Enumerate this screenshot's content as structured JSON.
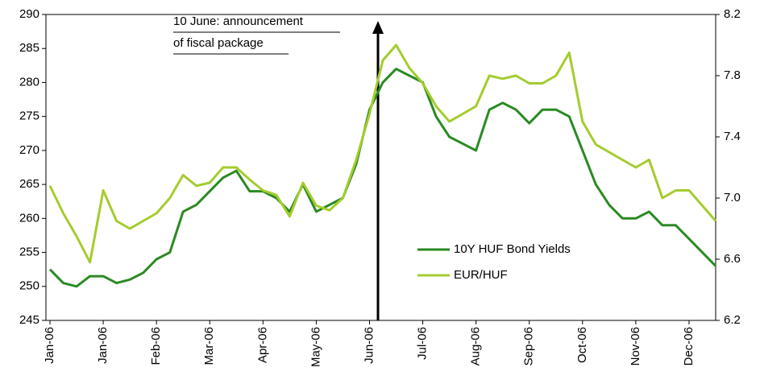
{
  "chart_data": {
    "type": "line",
    "annotations": [
      "10 June: announcement",
      "of fiscal package"
    ],
    "categories": [
      "Jan-06",
      null,
      null,
      null,
      "Jan-06",
      null,
      null,
      null,
      "Feb-06",
      null,
      null,
      null,
      "Mar-06",
      null,
      null,
      null,
      "Apr-06",
      null,
      null,
      null,
      "May-06",
      null,
      null,
      null,
      "Jun-06",
      null,
      null,
      null,
      "Jul-06",
      null,
      null,
      null,
      "Aug-06",
      null,
      null,
      null,
      "Sep-06",
      null,
      null,
      null,
      "Oct-06",
      null,
      null,
      null,
      "Nov-06",
      null,
      null,
      null,
      "Dec-06",
      null,
      null
    ],
    "series": [
      {
        "name": "10Y HUF Bond Yields",
        "color": "#2a8a22",
        "axis": "y",
        "values": [
          252.5,
          250.5,
          250,
          251.5,
          251.5,
          250.5,
          251,
          252,
          254,
          255,
          261,
          262,
          264,
          266,
          267,
          264,
          264,
          263,
          261,
          265,
          261,
          262,
          263,
          268,
          276,
          280,
          282,
          281,
          280,
          275,
          272,
          271,
          270,
          276,
          277,
          276,
          274,
          276,
          276,
          275,
          270,
          265,
          262,
          260,
          260,
          261,
          259,
          259,
          257,
          255,
          253
        ]
      },
      {
        "name": "EUR/HUF",
        "color": "#a4cc2e",
        "axis": "y2",
        "values": [
          7.08,
          6.9,
          6.75,
          6.58,
          7.05,
          6.85,
          6.8,
          6.85,
          6.9,
          7.0,
          7.15,
          7.08,
          7.1,
          7.2,
          7.2,
          7.12,
          7.05,
          7.02,
          6.88,
          7.1,
          6.95,
          6.92,
          7.0,
          7.25,
          7.55,
          7.9,
          8.0,
          7.85,
          7.75,
          7.6,
          7.5,
          7.55,
          7.6,
          7.8,
          7.78,
          7.8,
          7.75,
          7.75,
          7.8,
          7.95,
          7.5,
          7.35,
          7.3,
          7.25,
          7.2,
          7.25,
          7.0,
          7.05,
          7.05,
          6.95,
          6.85
        ]
      }
    ],
    "ylim": [
      245,
      290
    ],
    "yticks": [
      245,
      250,
      255,
      260,
      265,
      270,
      275,
      280,
      285,
      290
    ],
    "y2lim": [
      6.2,
      8.2
    ],
    "y2ticks": [
      6.2,
      6.6,
      {
        "value": 7,
        "label": "7.0"
      },
      7.4,
      7.8,
      8.2
    ],
    "grid": false,
    "legend": "lower right"
  }
}
